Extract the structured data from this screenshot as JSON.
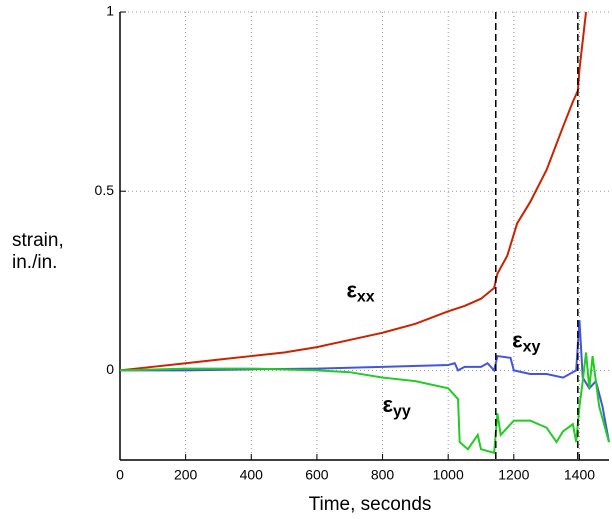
{
  "chart_data": {
    "type": "line",
    "ylabel": [
      "strain,",
      "in./in."
    ],
    "xlabel": "Time, seconds",
    "xlim": [
      0,
      1490
    ],
    "ylim": [
      -0.25,
      1
    ],
    "xticks": [
      0,
      200,
      400,
      600,
      800,
      1000,
      1200,
      1400
    ],
    "yticks": [
      0,
      0.5,
      1
    ],
    "grid": true,
    "vlines": [
      1145,
      1395
    ],
    "annotations": [
      {
        "text": "ε",
        "sub": "xx",
        "x": 690,
        "y": 0.22
      },
      {
        "text": "ε",
        "sub": "xy",
        "x": 1195,
        "y": 0.08
      },
      {
        "text": "ε",
        "sub": "yy",
        "x": 800,
        "y": -0.1
      }
    ],
    "series": [
      {
        "color": "#cc2200",
        "x": [
          0,
          100,
          200,
          300,
          400,
          500,
          600,
          700,
          800,
          900,
          1000,
          1050,
          1100,
          1140,
          1150,
          1180,
          1200,
          1210,
          1250,
          1300,
          1350,
          1380,
          1395,
          1400,
          1420
        ],
        "values": [
          0,
          0.01,
          0.02,
          0.03,
          0.04,
          0.05,
          0.065,
          0.085,
          0.105,
          0.13,
          0.165,
          0.18,
          0.2,
          0.23,
          0.27,
          0.32,
          0.38,
          0.41,
          0.47,
          0.56,
          0.68,
          0.75,
          0.78,
          0.84,
          1.0
        ]
      },
      {
        "color": "#4455dd",
        "x": [
          0,
          200,
          400,
          600,
          800,
          1000,
          1020,
          1030,
          1050,
          1100,
          1120,
          1140,
          1150,
          1190,
          1200,
          1250,
          1300,
          1350,
          1390,
          1400,
          1410,
          1430,
          1450,
          1470,
          1490
        ],
        "values": [
          0,
          0,
          0.003,
          0.005,
          0.01,
          0.015,
          0.02,
          0.0,
          0.01,
          0.01,
          0.02,
          0.0,
          0.04,
          0.035,
          0.0,
          -0.01,
          -0.01,
          -0.02,
          0.0,
          0.14,
          -0.02,
          -0.05,
          -0.03,
          -0.1,
          -0.2
        ]
      },
      {
        "color": "#22cc22",
        "x": [
          0,
          200,
          400,
          600,
          700,
          800,
          900,
          1000,
          1030,
          1035,
          1060,
          1090,
          1100,
          1140,
          1150,
          1160,
          1200,
          1250,
          1300,
          1330,
          1350,
          1380,
          1390,
          1400,
          1410,
          1420,
          1430,
          1440,
          1460,
          1490
        ],
        "values": [
          0,
          0.005,
          0.005,
          0,
          -0.005,
          -0.02,
          -0.03,
          -0.05,
          -0.08,
          -0.2,
          -0.22,
          -0.18,
          -0.22,
          -0.23,
          -0.12,
          -0.18,
          -0.14,
          -0.14,
          -0.16,
          -0.2,
          -0.17,
          -0.15,
          -0.2,
          -0.1,
          -0.03,
          0.05,
          -0.05,
          0.04,
          -0.1,
          -0.2
        ]
      }
    ]
  }
}
